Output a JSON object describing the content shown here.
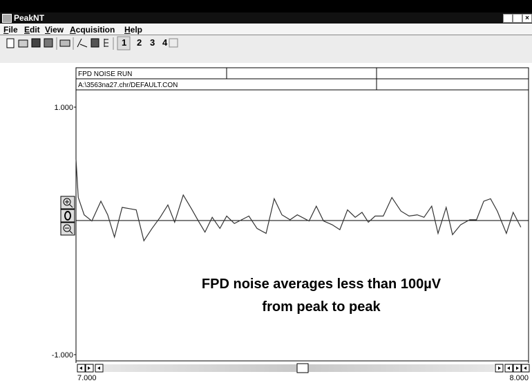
{
  "window": {
    "title": "PeakNT"
  },
  "menu": [
    "File",
    "Edit",
    "View",
    "Acquisition",
    "Help"
  ],
  "toolbar": {
    "channels": [
      "1",
      "2",
      "3",
      "4"
    ]
  },
  "chart_data": {
    "type": "line",
    "header": [
      "FPD NOISE RUN",
      "A:\\3563na27.chr/DEFAULT.CON"
    ],
    "annotation": [
      "FPD noise averages less than 100µV",
      "from peak to peak"
    ],
    "x": [
      7.0,
      7.005,
      7.018,
      7.035,
      7.055,
      7.07,
      7.085,
      7.102,
      7.118,
      7.133,
      7.15,
      7.168,
      7.186,
      7.203,
      7.218,
      7.237,
      7.255,
      7.272,
      7.285,
      7.301,
      7.318,
      7.333,
      7.35,
      7.366,
      7.382,
      7.4,
      7.42,
      7.438,
      7.455,
      7.473,
      7.489,
      7.515,
      7.531,
      7.547,
      7.566,
      7.583,
      7.6,
      7.617,
      7.632,
      7.646,
      7.661,
      7.679,
      7.698,
      7.718,
      7.736,
      7.754,
      7.769,
      7.786,
      7.8,
      7.818,
      7.832,
      7.85,
      7.87,
      7.885,
      7.901,
      7.916,
      7.931,
      7.951,
      7.966,
      7.983
    ],
    "series": [
      {
        "color": "#333333",
        "values": [
          0.58,
          0.27,
          0.13,
          0.08,
          0.24,
          0.13,
          -0.05,
          0.19,
          0.18,
          0.17,
          -0.08,
          0.02,
          0.11,
          0.21,
          0.07,
          0.29,
          0.18,
          0.07,
          -0.01,
          0.11,
          0.02,
          0.12,
          0.06,
          0.09,
          0.12,
          0.02,
          -0.02,
          0.26,
          0.13,
          0.09,
          0.13,
          0.08,
          0.2,
          0.08,
          0.05,
          0.01,
          0.17,
          0.11,
          0.15,
          0.07,
          0.12,
          0.12,
          0.27,
          0.16,
          0.12,
          0.13,
          0.11,
          0.2,
          -0.02,
          0.19,
          -0.03,
          0.05,
          0.09,
          0.09,
          0.24,
          0.26,
          0.16,
          -0.02,
          0.15,
          0.03
        ]
      }
    ],
    "xlim": [
      7,
      8
    ],
    "xticks": [
      {
        "value": 7,
        "label": "7.000"
      },
      {
        "value": 8,
        "label": "8.000"
      }
    ],
    "ylim": [
      -1,
      1
    ],
    "yticks": [
      {
        "value": -1,
        "label": "-1.000"
      },
      {
        "value": 1,
        "label": "1.000"
      }
    ]
  }
}
